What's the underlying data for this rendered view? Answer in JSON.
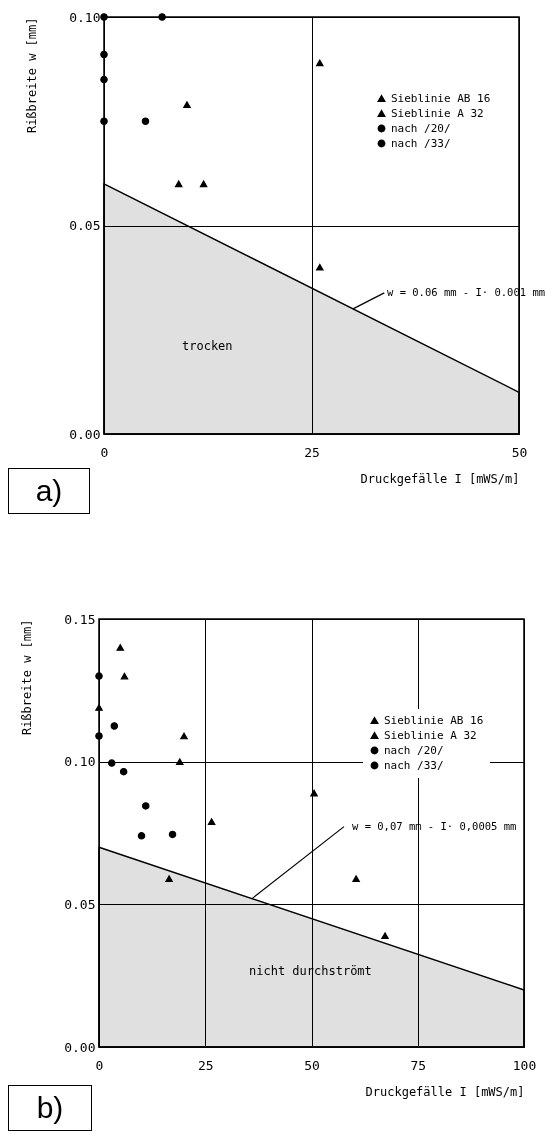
{
  "chart_data": [
    {
      "type": "scatter",
      "xlabel": "Druckgefälle I [mWS/m]",
      "ylabel": "Rißbreite w [mm]",
      "xlim": [
        0,
        50
      ],
      "ylim": [
        0,
        0.1
      ],
      "xticks": [
        0,
        25,
        50
      ],
      "yticks": [
        {
          "value": 0,
          "label": "0.00"
        },
        {
          "value": 0.05,
          "label": "0.05"
        },
        {
          "value": 0.1,
          "label": "0.10"
        }
      ],
      "grid": true,
      "legend": "top right",
      "series": [
        {
          "name": "Sieblinie AB 16",
          "color": "#000000",
          "marker": "triangle",
          "x": [
            26,
            10
          ],
          "values": [
            0.089,
            0.079
          ]
        },
        {
          "name": "Sieblinie A 32",
          "color": "#000000",
          "marker": "triangle",
          "x": [
            9,
            12,
            26
          ],
          "values": [
            0.06,
            0.06,
            0.04
          ]
        },
        {
          "name": "nach /20/",
          "color": "#000000",
          "marker": "circle",
          "x": [
            0,
            0,
            0,
            0,
            7
          ],
          "values": [
            0.1,
            0.091,
            0.085,
            0.075,
            0.1
          ]
        },
        {
          "name": "nach /33/",
          "color": "#000000",
          "marker": "circle",
          "x": [
            5
          ],
          "values": [
            0.075
          ]
        },
        {
          "type": "area",
          "color": "#000000",
          "x": [
            0,
            50
          ],
          "values": [
            0.06,
            0.01
          ]
        }
      ],
      "annotations": [
        "a)",
        "trocken",
        {
          "text": "w = 0.06 mm - I· 0.001 mm",
          "x": 30,
          "y": 0.03
        }
      ]
    },
    {
      "type": "scatter",
      "xlabel": "Druckgefälle I [mWS/m]",
      "ylabel": "Rißbreite w [mm]",
      "xlim": [
        0,
        100
      ],
      "ylim": [
        0,
        0.15
      ],
      "xticks": [
        0,
        25,
        50,
        75,
        100
      ],
      "yticks": [
        {
          "value": 0,
          "label": "0.00"
        },
        {
          "value": 0.05,
          "label": "0.05"
        },
        {
          "value": 0.1,
          "label": "0.10"
        },
        {
          "value": 0.15,
          "label": "0.15"
        }
      ],
      "grid": true,
      "legend": "top right",
      "series": [
        {
          "name": "Sieblinie AB 16",
          "color": "#000000",
          "marker": "triangle",
          "x": [
            5,
            6,
            26.5,
            16.5,
            60.5,
            67.3
          ],
          "values": [
            0.14,
            0.13,
            0.079,
            0.059,
            0.059,
            0.039
          ]
        },
        {
          "name": "Sieblinie A 32",
          "color": "#000000",
          "marker": "triangle",
          "x": [
            0,
            20,
            19,
            50.6
          ],
          "values": [
            0.119,
            0.109,
            0.1,
            0.089
          ]
        },
        {
          "name": "nach /20/",
          "color": "#000000",
          "marker": "circle",
          "x": [
            0,
            3.6,
            0,
            5.8,
            11,
            17.3
          ],
          "values": [
            0.13,
            0.1125,
            0.109,
            0.0965,
            0.0845,
            0.0745
          ]
        },
        {
          "name": "nach /33/",
          "color": "#000000",
          "marker": "circle",
          "x": [
            3,
            10
          ],
          "values": [
            0.0995,
            0.074
          ]
        },
        {
          "type": "area",
          "color": "#000000",
          "x": [
            0,
            100
          ],
          "values": [
            0.07,
            0.02
          ]
        }
      ],
      "annotations": [
        "b)",
        "nicht durchströmt",
        {
          "text": "w = 0,07 mm - I· 0,0005 mm",
          "x": 36,
          "y": 0.052
        }
      ]
    }
  ]
}
